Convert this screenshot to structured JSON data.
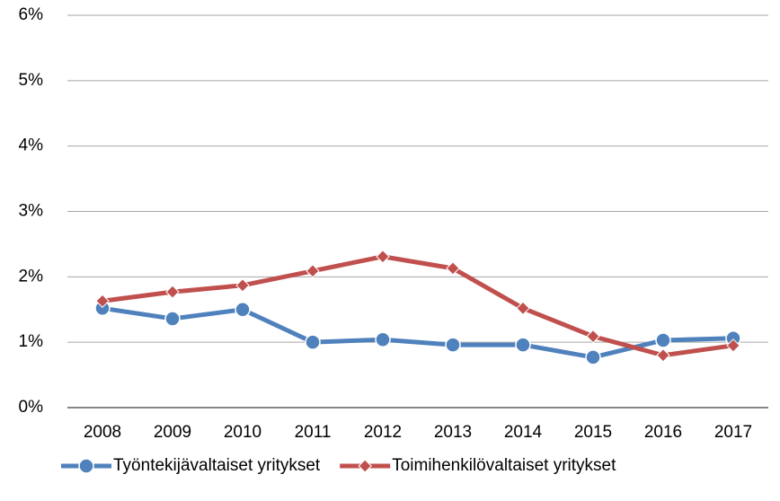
{
  "chart_data": {
    "type": "line",
    "categories": [
      "2008",
      "2009",
      "2010",
      "2011",
      "2012",
      "2013",
      "2014",
      "2015",
      "2016",
      "2017"
    ],
    "series": [
      {
        "name": "Työntekijävaltaiset yritykset",
        "color": "#4f81bd",
        "marker": "circle",
        "values": [
          1.52,
          1.36,
          1.5,
          1.0,
          1.04,
          0.96,
          0.96,
          0.77,
          1.03,
          1.06
        ]
      },
      {
        "name": "Toimihenkilövaltaiset yritykset",
        "color": "#c0504d",
        "marker": "diamond",
        "values": [
          1.63,
          1.77,
          1.87,
          2.09,
          2.31,
          2.13,
          1.52,
          1.09,
          0.8,
          0.95
        ]
      }
    ],
    "ylim": [
      0,
      6
    ],
    "yticks": [
      {
        "value": 0,
        "label": "0%"
      },
      {
        "value": 1,
        "label": "1%"
      },
      {
        "value": 2,
        "label": "2%"
      },
      {
        "value": 3,
        "label": "3%"
      },
      {
        "value": 4,
        "label": "4%"
      },
      {
        "value": 5,
        "label": "5%"
      },
      {
        "value": 6,
        "label": "6%"
      }
    ],
    "grid": true,
    "legend": "bottom"
  }
}
